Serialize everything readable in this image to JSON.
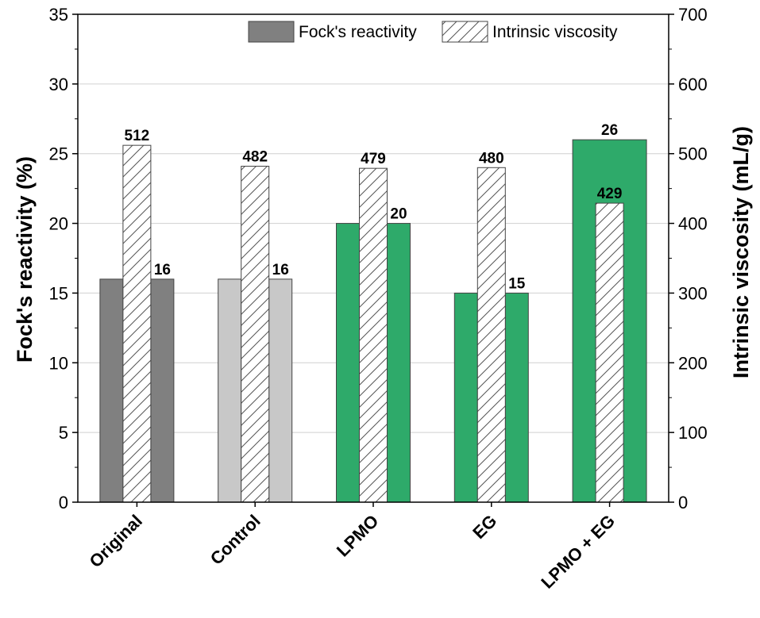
{
  "chart_data": {
    "type": "bar",
    "categories": [
      "Original",
      "Control",
      "LPMO",
      "EG",
      "LPMO + EG"
    ],
    "ylabel": "Fock's reactivity (%)",
    "y2label": "Intrinsic viscosity (mL/g)",
    "ylim": [
      0,
      35
    ],
    "y2lim": [
      0,
      700
    ],
    "yticks": [
      0,
      5,
      10,
      15,
      20,
      25,
      30,
      35
    ],
    "y2ticks": [
      0,
      100,
      200,
      300,
      400,
      500,
      600,
      700
    ],
    "grid": true,
    "legend_position": "top-right",
    "series": [
      {
        "name": "Fock's reactivity",
        "axis": "left",
        "values": [
          16,
          16,
          20,
          15,
          26
        ],
        "labels": [
          "16",
          "16",
          "20",
          "15",
          "26"
        ],
        "colors": [
          "#808080",
          "#c8c8c8",
          "#2eaa6a",
          "#2eaa6a",
          "#2eaa6a"
        ],
        "legend_color": "#808080"
      },
      {
        "name": "Intrinsic viscosity",
        "axis": "right",
        "values": [
          512,
          482,
          479,
          480,
          429
        ],
        "labels": [
          "512",
          "482",
          "479",
          "480",
          "429"
        ],
        "pattern": "hatched"
      }
    ]
  }
}
